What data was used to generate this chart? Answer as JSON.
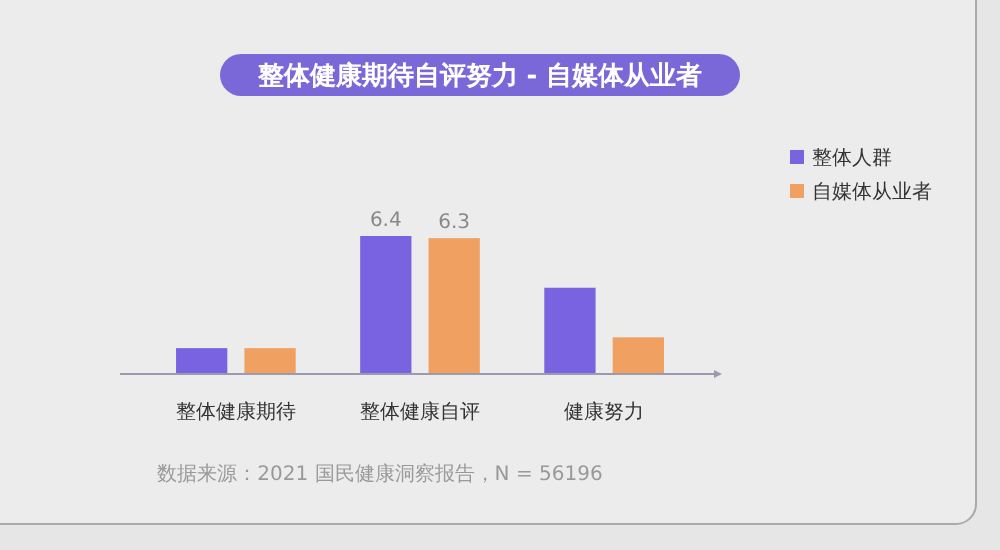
{
  "chart_data": {
    "type": "bar",
    "title": "整体健康期待自评努力 - 自媒体从业者",
    "categories": [
      "整体健康期待",
      "整体健康自评",
      "健康努力"
    ],
    "series": [
      {
        "name": "整体人群",
        "color": "#7a63e0",
        "values": [
          1.2,
          6.4,
          4.0
        ],
        "value_labels": [
          null,
          "6.4",
          null
        ]
      },
      {
        "name": "自媒体从业者",
        "color": "#f0a060",
        "values": [
          1.2,
          6.3,
          1.7
        ],
        "value_labels": [
          null,
          "6.3",
          null
        ]
      }
    ],
    "legend": "top right",
    "annotations": [
      "数据来源：2021 国民健康洞察报告，N = 56196"
    ]
  }
}
